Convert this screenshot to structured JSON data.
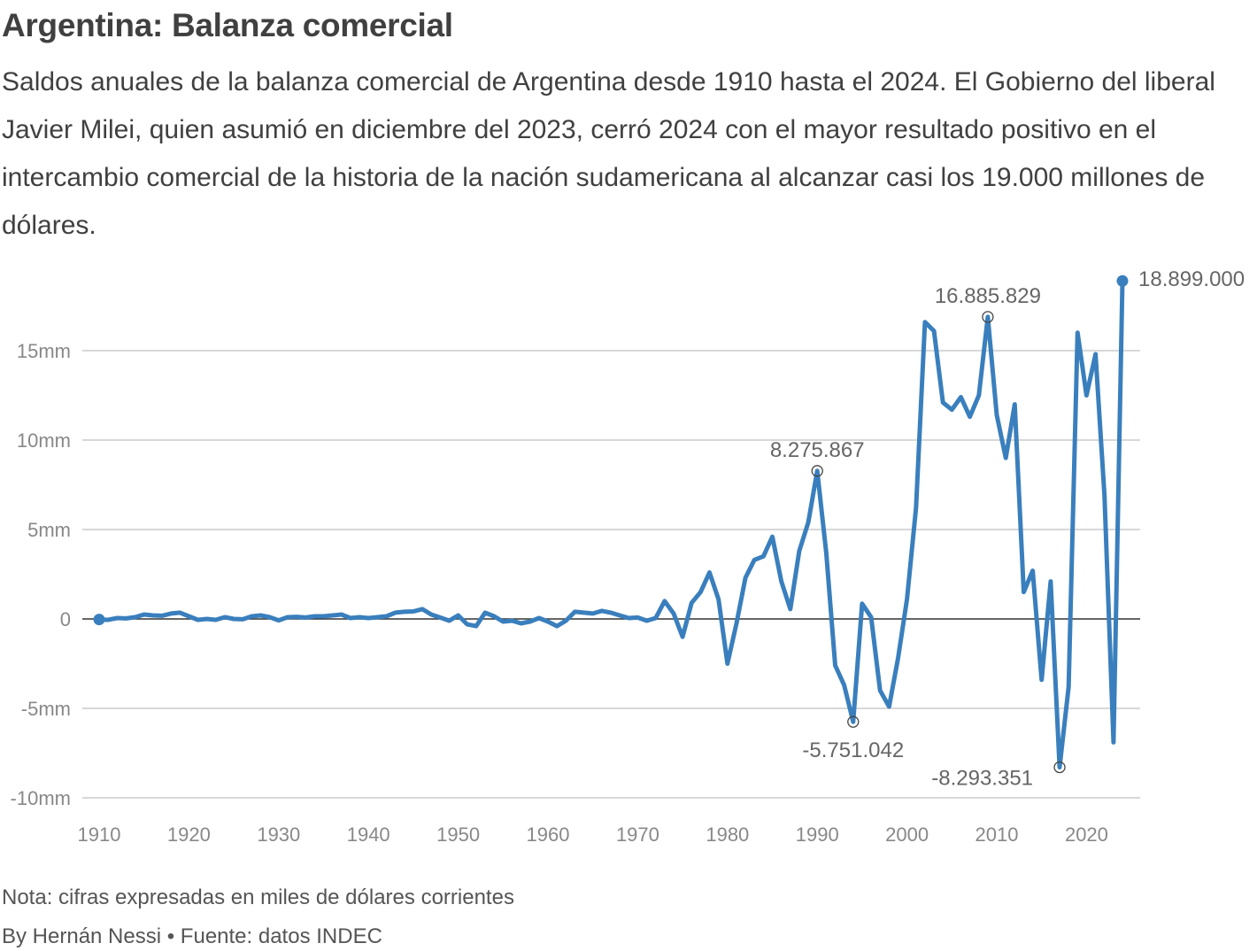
{
  "header": {
    "title": "Argentina: Balanza comercial",
    "subtitle": "Saldos anuales de la balanza comercial de Argentina desde 1910 hasta el 2024. El Gobierno del liberal Javier Milei, quien asumió en diciembre del 2023, cerró 2024 con el mayor resultado positivo en el intercambio comercial de la historia de la nación sudamericana al alcanzar casi los 19.000 millones de dólares."
  },
  "footer": {
    "note": "Nota: cifras expresadas en miles de dólares corrientes",
    "byline": "By Hernán Nessi • Fuente: datos INDEC"
  },
  "colors": {
    "line": "#3a7fbd",
    "grid": "#cccccc",
    "zero": "#333333",
    "text": "#404040"
  },
  "chart_data": {
    "type": "line",
    "title": "Argentina: Balanza comercial",
    "xlabel": "",
    "ylabel": "",
    "xlim": [
      1910,
      2024
    ],
    "ylim": [
      -10000000,
      15000000
    ],
    "grid": true,
    "x_ticks": [
      "1910",
      "1920",
      "1930",
      "1940",
      "1950",
      "1960",
      "1970",
      "1980",
      "1990",
      "2000",
      "2010",
      "2020"
    ],
    "y_ticks": [
      {
        "value": 15000000,
        "label": "15mm"
      },
      {
        "value": 10000000,
        "label": "10mm"
      },
      {
        "value": 5000000,
        "label": "5mm"
      },
      {
        "value": 0,
        "label": "0"
      },
      {
        "value": -5000000,
        "label": "-5mm"
      },
      {
        "value": -10000000,
        "label": "-10mm"
      }
    ],
    "series": [
      {
        "x": [
          1910,
          1911,
          1912,
          1913,
          1914,
          1915,
          1916,
          1917,
          1918,
          1919,
          1920,
          1921,
          1922,
          1923,
          1924,
          1925,
          1926,
          1927,
          1928,
          1929,
          1930,
          1931,
          1932,
          1933,
          1934,
          1935,
          1936,
          1937,
          1938,
          1939,
          1940,
          1941,
          1942,
          1943,
          1944,
          1945,
          1946,
          1947,
          1948,
          1949,
          1950,
          1951,
          1952,
          1953,
          1954,
          1955,
          1956,
          1957,
          1958,
          1959,
          1960,
          1961,
          1962,
          1963,
          1964,
          1965,
          1966,
          1967,
          1968,
          1969,
          1970,
          1971,
          1972,
          1973,
          1974,
          1975,
          1976,
          1977,
          1978,
          1979,
          1980,
          1981,
          1982,
          1983,
          1984,
          1985,
          1986,
          1987,
          1988,
          1989,
          1990,
          1991,
          1992,
          1993,
          1994,
          1995,
          1996,
          1997,
          1998,
          1999,
          2000,
          2001,
          2002,
          2003,
          2004,
          2005,
          2006,
          2007,
          2008,
          2009,
          2010,
          2011,
          2012,
          2013,
          2014,
          2015,
          2016,
          2017,
          2018,
          2019,
          2020,
          2021,
          2022,
          2023,
          2024
        ],
        "values": [
          -30000,
          -50000,
          50000,
          30000,
          100000,
          250000,
          200000,
          180000,
          300000,
          350000,
          150000,
          -50000,
          0,
          -50000,
          100000,
          0,
          -20000,
          150000,
          200000,
          100000,
          -80000,
          100000,
          120000,
          80000,
          150000,
          150000,
          200000,
          250000,
          50000,
          100000,
          50000,
          100000,
          150000,
          350000,
          400000,
          420000,
          550000,
          250000,
          80000,
          -100000,
          200000,
          -300000,
          -400000,
          350000,
          150000,
          -150000,
          -100000,
          -250000,
          -150000,
          50000,
          -150000,
          -400000,
          -100000,
          400000,
          350000,
          300000,
          450000,
          350000,
          200000,
          50000,
          80000,
          -100000,
          50000,
          1000000,
          300000,
          -1000000,
          900000,
          1500000,
          2600000,
          1100000,
          -2500000,
          -250000,
          2300000,
          3300000,
          3500000,
          4600000,
          2100000,
          550000,
          3800000,
          5400000,
          8275867,
          3700000,
          -2600000,
          -3700000,
          -5751042,
          850000,
          100000,
          -4000000,
          -4900000,
          -2200000,
          1100000,
          6200000,
          16600000,
          16100000,
          12100000,
          11700000,
          12400000,
          11300000,
          12500000,
          16885829,
          11400000,
          9000000,
          12000000,
          1500000,
          2700000,
          -3400000,
          2100000,
          -8293351,
          -3800000,
          16000000,
          12500000,
          14800000,
          6900000,
          -6900000,
          18899000
        ]
      }
    ],
    "annotations": [
      {
        "x": 1990,
        "value": 8275867,
        "label": "8.275.867",
        "marker": "ring",
        "position": "above"
      },
      {
        "x": 1994,
        "value": -5751042,
        "label": "-5.751.042",
        "marker": "ring",
        "position": "below"
      },
      {
        "x": 2009,
        "value": 16885829,
        "label": "16.885.829",
        "marker": "ring",
        "position": "above"
      },
      {
        "x": 2017,
        "value": -8293351,
        "label": "-8.293.351",
        "marker": "ring",
        "position": "below-left"
      },
      {
        "x": 2024,
        "value": 18899000,
        "label": "18.899.000",
        "marker": "dot",
        "position": "right"
      },
      {
        "x": 1910,
        "value": -30000,
        "label": "",
        "marker": "dot",
        "position": "none"
      }
    ]
  }
}
